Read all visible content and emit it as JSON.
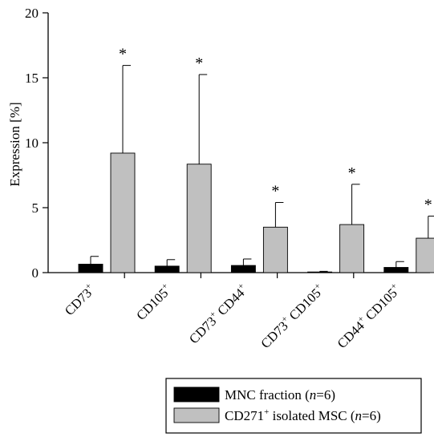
{
  "chart_data": {
    "type": "bar",
    "ylabel": "Expression [%]",
    "ylim": [
      0,
      20
    ],
    "yticks": [
      "0",
      "5",
      "10",
      "15",
      "20"
    ],
    "categories": [
      {
        "main": "CD73",
        "sup": "+",
        "rest": "",
        "rest_sup": ""
      },
      {
        "main": "CD105",
        "sup": "+",
        "rest": "",
        "rest_sup": ""
      },
      {
        "main": "CD73",
        "sup": "+",
        "rest": " CD44",
        "rest_sup": "+"
      },
      {
        "main": "CD73",
        "sup": "+",
        "rest": " CD105",
        "rest_sup": "+"
      },
      {
        "main": "CD44",
        "sup": "+",
        "rest": " CD105",
        "rest_sup": "+"
      }
    ],
    "series": [
      {
        "name_parts": [
          {
            "t": "MNC fraction ("
          },
          {
            "t": "n",
            "italic": true
          },
          {
            "t": "=6)"
          }
        ],
        "color": "#000000",
        "values": [
          0.65,
          0.5,
          0.55,
          0.05,
          0.4
        ],
        "errors": [
          0.6,
          0.5,
          0.5,
          0.05,
          0.45
        ]
      },
      {
        "name_parts": [
          {
            "t": "CD271"
          },
          {
            "t": "+",
            "sup": true
          },
          {
            "t": " isolated MSC ("
          },
          {
            "t": "n",
            "italic": true
          },
          {
            "t": "=6)"
          }
        ],
        "color": "#c0c0c0",
        "values": [
          9.2,
          8.35,
          3.5,
          3.7,
          2.65
        ],
        "errors": [
          6.75,
          6.9,
          1.9,
          3.1,
          1.7
        ]
      }
    ],
    "significance_marker": "*",
    "significant": [
      true,
      true,
      true,
      true,
      true
    ],
    "legend_position": "bottom-right"
  }
}
